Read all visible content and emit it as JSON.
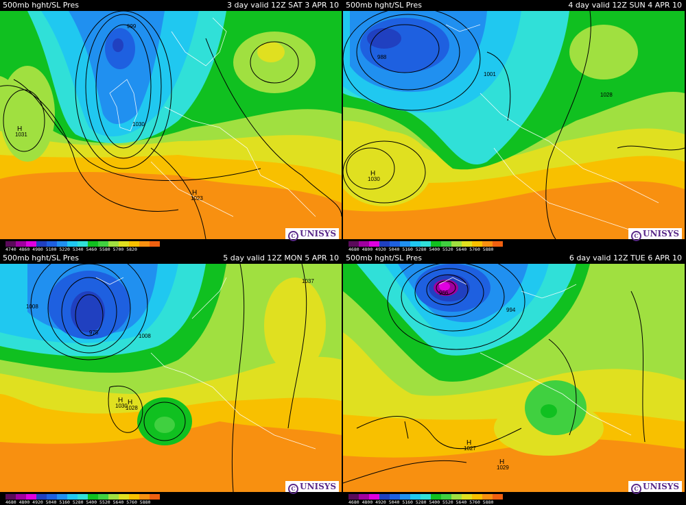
{
  "panels": [
    {
      "title": "500mb hght/SL Pres",
      "valid": "3 day valid 12Z SAT  3 APR 10",
      "scale": [
        "4740",
        "4860",
        "4980",
        "5100",
        "5220",
        "5340",
        "5460",
        "5580",
        "5700",
        "5820"
      ],
      "pressure_labels": [
        "999",
        "1031",
        "1030",
        "1023"
      ],
      "highs": [
        "H",
        "H"
      ],
      "logo": "UNISYS"
    },
    {
      "title": "500mb hght/SL Pres",
      "valid": "4 day valid 12Z SUN  4 APR 10",
      "scale": [
        "4680",
        "4800",
        "4920",
        "5040",
        "5160",
        "5280",
        "5400",
        "5520",
        "5640",
        "5760",
        "5880"
      ],
      "pressure_labels": [
        "988",
        "1001",
        "1028",
        "1030"
      ],
      "highs": [
        "H"
      ],
      "logo": "UNISYS"
    },
    {
      "title": "500mb hght/SL Pres",
      "valid": "5 day valid 12Z MON  5 APR 10",
      "scale": [
        "4680",
        "4800",
        "4920",
        "5040",
        "5160",
        "5280",
        "5400",
        "5520",
        "5640",
        "5760",
        "5880"
      ],
      "pressure_labels": [
        "1008",
        "975",
        "1008",
        "1037",
        "1030",
        "1028"
      ],
      "highs": [
        "H",
        "H"
      ],
      "logo": "UNISYS"
    },
    {
      "title": "500mb hght/SL Pres",
      "valid": "6 day valid 12Z TUE  6 APR 10",
      "scale": [
        "4680",
        "4800",
        "4920",
        "5040",
        "5160",
        "5280",
        "5400",
        "5520",
        "5640",
        "5760",
        "5880"
      ],
      "pressure_labels": [
        "966",
        "994",
        "1027",
        "1029"
      ],
      "highs": [
        "H",
        "H"
      ],
      "logo": "UNISYS"
    }
  ],
  "colors": {
    "scale": [
      "#5a0a5a",
      "#a000a0",
      "#e000e0",
      "#2040c0",
      "#1e60e0",
      "#2090f0",
      "#20c8f0",
      "#30e0d8",
      "#10c020",
      "#40d040",
      "#a0e040",
      "#e0e020",
      "#f8c000",
      "#f89010",
      "#f06010"
    ]
  }
}
